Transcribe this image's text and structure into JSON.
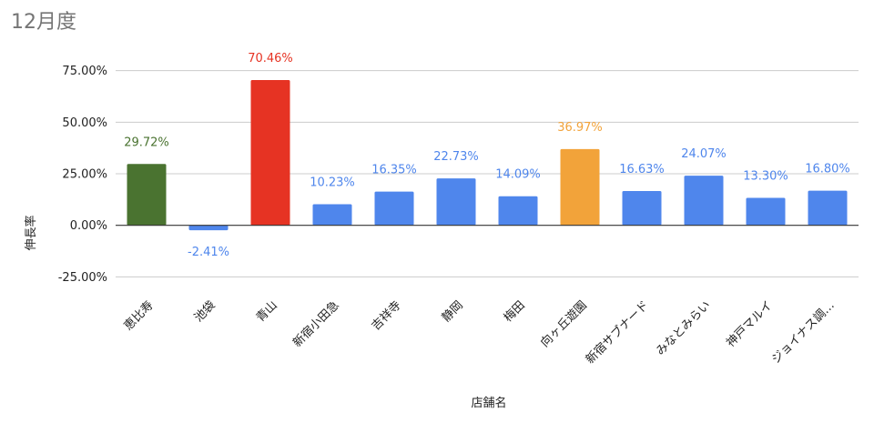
{
  "chart_data": {
    "type": "bar",
    "title": "12月度",
    "xlabel": "店舗名",
    "ylabel": "伸長率",
    "ylim": [
      -0.3125,
      0.8125
    ],
    "yticks": [
      {
        "value": 0.75,
        "label": "75.00%"
      },
      {
        "value": 0.5,
        "label": "50.00%"
      },
      {
        "value": 0.25,
        "label": "25.00%"
      },
      {
        "value": 0.0,
        "label": "0.00%"
      },
      {
        "value": -0.25,
        "label": "-25.00%"
      }
    ],
    "categories": [
      "恵比寿",
      "池袋",
      "青山",
      "新宿小田急",
      "吉祥寺",
      "静岡",
      "梅田",
      "向ヶ丘遊園",
      "新宿サブナード",
      "みなとみらい",
      "神戸マルイ",
      "ジョイナス調…"
    ],
    "values": [
      0.2972,
      -0.0241,
      0.7046,
      0.1023,
      0.1635,
      0.2273,
      0.1409,
      0.3697,
      0.1663,
      0.2407,
      0.133,
      0.168
    ],
    "value_labels": [
      "29.72%",
      "-2.41%",
      "70.46%",
      "10.23%",
      "16.35%",
      "22.73%",
      "14.09%",
      "36.97%",
      "16.63%",
      "24.07%",
      "13.30%",
      "16.80%"
    ],
    "bar_colors": [
      "#4a7330",
      "#4f86ec",
      "#e63323",
      "#4f86ec",
      "#4f86ec",
      "#4f86ec",
      "#4f86ec",
      "#f2a33a",
      "#4f86ec",
      "#4f86ec",
      "#4f86ec",
      "#4f86ec"
    ],
    "label_colors": [
      "#4a7330",
      "#4f86ec",
      "#e63323",
      "#4f86ec",
      "#4f86ec",
      "#4f86ec",
      "#4f86ec",
      "#f2a33a",
      "#4f86ec",
      "#4f86ec",
      "#4f86ec",
      "#4f86ec"
    ],
    "grid": true,
    "legend": "none"
  }
}
